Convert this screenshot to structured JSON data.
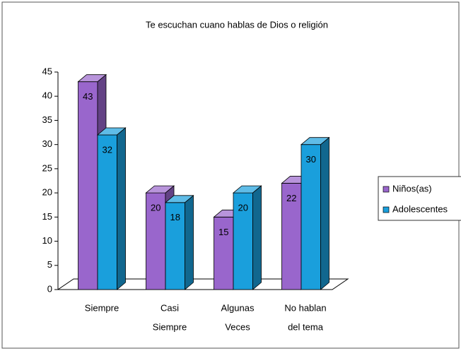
{
  "chart_data": {
    "type": "bar3d",
    "title": "Te escuchan cuano hablas de Dios o religión",
    "categories": [
      [
        "Siempre"
      ],
      [
        "Casi",
        "Siempre"
      ],
      [
        "Algunas",
        "Veces"
      ],
      [
        "No hablan",
        "del tema"
      ]
    ],
    "series": [
      {
        "name": "Niños(as)",
        "color": "#9966cc",
        "values": [
          43,
          20,
          15,
          22
        ]
      },
      {
        "name": "Adolescentes",
        "color": "#1a9fdc",
        "values": [
          32,
          18,
          20,
          30
        ]
      }
    ],
    "ylim": [
      0,
      45
    ],
    "yticks": [
      0,
      5,
      10,
      15,
      20,
      25,
      30,
      35,
      40,
      45
    ],
    "grid": false,
    "legend": "right"
  }
}
